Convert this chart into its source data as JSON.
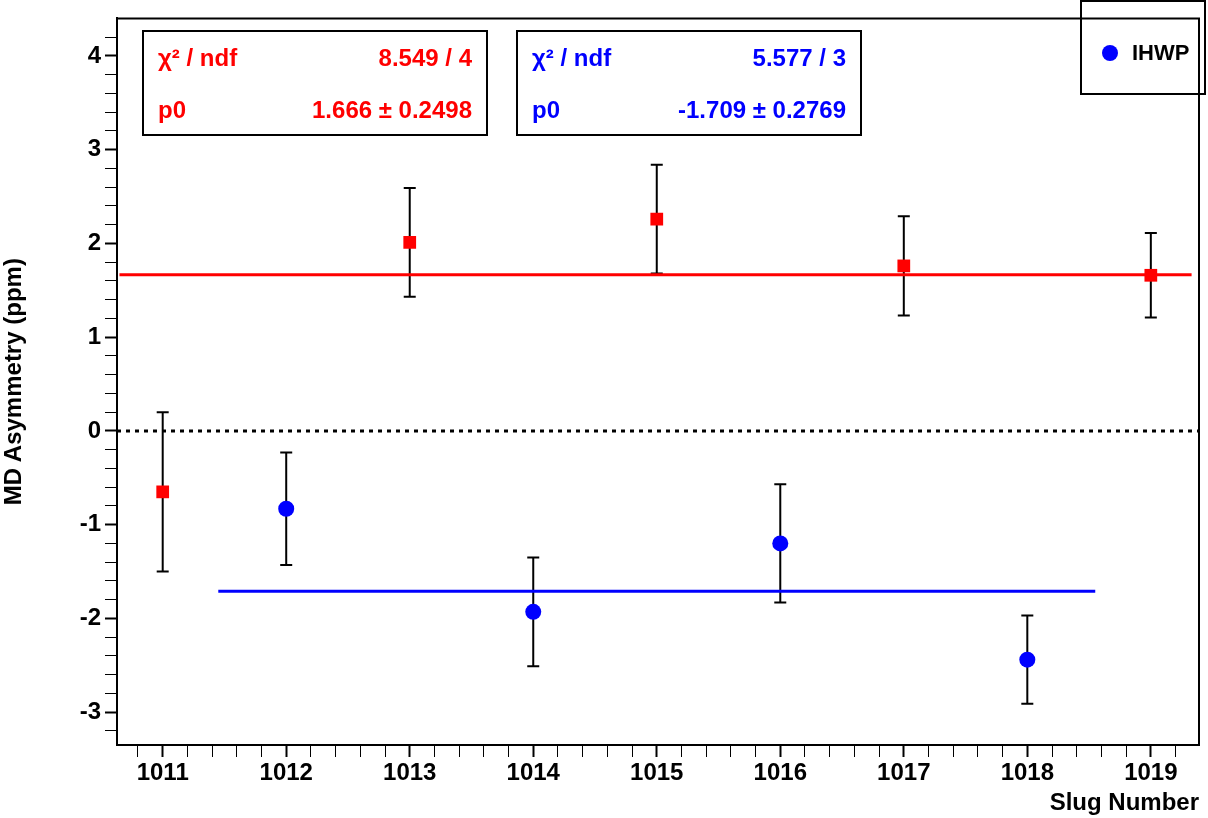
{
  "chart_data": {
    "type": "scatter",
    "xlabel": "Slug Number",
    "ylabel": "MD Asymmetry (ppm)",
    "xlim": [
      1010.63,
      1019.39
    ],
    "xticks": [
      {
        "value": 1010.8,
        "label": null
      },
      1011,
      {
        "value": 1011.2,
        "label": null
      },
      {
        "value": 1011.4,
        "label": null
      },
      {
        "value": 1011.6,
        "label": null
      },
      {
        "value": 1011.8,
        "label": null
      },
      1012,
      {
        "value": 1012.2,
        "label": null
      },
      {
        "value": 1012.4,
        "label": null
      },
      {
        "value": 1012.6,
        "label": null
      },
      {
        "value": 1012.8,
        "label": null
      },
      1013,
      {
        "value": 1013.2,
        "label": null
      },
      {
        "value": 1013.4,
        "label": null
      },
      {
        "value": 1013.6,
        "label": null
      },
      {
        "value": 1013.8,
        "label": null
      },
      1014,
      {
        "value": 1014.2,
        "label": null
      },
      {
        "value": 1014.4,
        "label": null
      },
      {
        "value": 1014.6,
        "label": null
      },
      {
        "value": 1014.8,
        "label": null
      },
      1015,
      {
        "value": 1015.2,
        "label": null
      },
      {
        "value": 1015.4,
        "label": null
      },
      {
        "value": 1015.6,
        "label": null
      },
      {
        "value": 1015.8,
        "label": null
      },
      1016,
      {
        "value": 1016.2,
        "label": null
      },
      {
        "value": 1016.4,
        "label": null
      },
      {
        "value": 1016.6,
        "label": null
      },
      {
        "value": 1016.8,
        "label": null
      },
      1017,
      {
        "value": 1017.2,
        "label": null
      },
      {
        "value": 1017.4,
        "label": null
      },
      {
        "value": 1017.6,
        "label": null
      },
      {
        "value": 1017.8,
        "label": null
      },
      1018,
      {
        "value": 1018.2,
        "label": null
      },
      {
        "value": 1018.4,
        "label": null
      },
      {
        "value": 1018.6,
        "label": null
      },
      {
        "value": 1018.8,
        "label": null
      },
      1019,
      {
        "value": 1019.2,
        "label": null
      }
    ],
    "ylim": [
      -3.35,
      4.4
    ],
    "yticks": [
      {
        "value": -3.2,
        "label": null
      },
      -3,
      {
        "value": -2.8,
        "label": null
      },
      {
        "value": -2.6,
        "label": null
      },
      {
        "value": -2.4,
        "label": null
      },
      {
        "value": -2.2,
        "label": null
      },
      -2,
      {
        "value": -1.8,
        "label": null
      },
      {
        "value": -1.6,
        "label": null
      },
      {
        "value": -1.4,
        "label": null
      },
      {
        "value": -1.2,
        "label": null
      },
      -1,
      {
        "value": -0.8,
        "label": null
      },
      {
        "value": -0.6,
        "label": null
      },
      {
        "value": -0.4,
        "label": null
      },
      {
        "value": -0.2,
        "label": null
      },
      0,
      {
        "value": 0.2,
        "label": null
      },
      {
        "value": 0.4,
        "label": null
      },
      {
        "value": 0.6,
        "label": null
      },
      {
        "value": 0.8,
        "label": null
      },
      1,
      {
        "value": 1.2,
        "label": null
      },
      {
        "value": 1.4,
        "label": null
      },
      {
        "value": 1.6,
        "label": null
      },
      {
        "value": 1.8,
        "label": null
      },
      2,
      {
        "value": 2.2,
        "label": null
      },
      {
        "value": 2.4,
        "label": null
      },
      {
        "value": 2.6,
        "label": null
      },
      {
        "value": 2.8,
        "label": null
      },
      3,
      {
        "value": 3.2,
        "label": null
      },
      {
        "value": 3.4,
        "label": null
      },
      {
        "value": 3.6,
        "label": null
      },
      {
        "value": 3.8,
        "label": null
      },
      4,
      {
        "value": 4.2,
        "label": null
      }
    ],
    "grid": false,
    "legend": "top right",
    "series": [
      {
        "type": "scatter",
        "color": "#ff0000",
        "marker": "square",
        "x": [
          1011,
          1013,
          1015,
          1017,
          1019
        ],
        "values": [
          -0.65,
          2.01,
          2.26,
          1.76,
          1.66
        ],
        "errors": [
          0.85,
          0.58,
          0.58,
          0.53,
          0.45
        ]
      },
      {
        "type": "scatter",
        "name": "IHWP",
        "color": "#0000ff",
        "marker": "circle",
        "x": [
          1012,
          1014,
          1016,
          1018
        ],
        "values": [
          -0.83,
          -1.93,
          -1.2,
          -2.44
        ],
        "errors": [
          0.6,
          0.58,
          0.63,
          0.47
        ]
      },
      {
        "type": "line",
        "color": "#ff0000",
        "marker": "none",
        "x": [
          1010.65,
          1019.33
        ],
        "values": [
          1.666,
          1.666
        ]
      },
      {
        "type": "line",
        "color": "#0000ff",
        "marker": "none",
        "x": [
          1011.45,
          1018.55
        ],
        "values": [
          -1.709,
          -1.709
        ]
      }
    ],
    "ref_lines": [
      {
        "axis": "y",
        "value": 0,
        "color": "#000000",
        "line_style": "dotted"
      }
    ],
    "annotations": [
      "χ² / ndf",
      "8.549 / 4",
      "p0",
      "1.666 ± 0.2498",
      "χ² / ndf",
      "5.577 / 3",
      "p0",
      "-1.709 ± 0.2769"
    ]
  }
}
